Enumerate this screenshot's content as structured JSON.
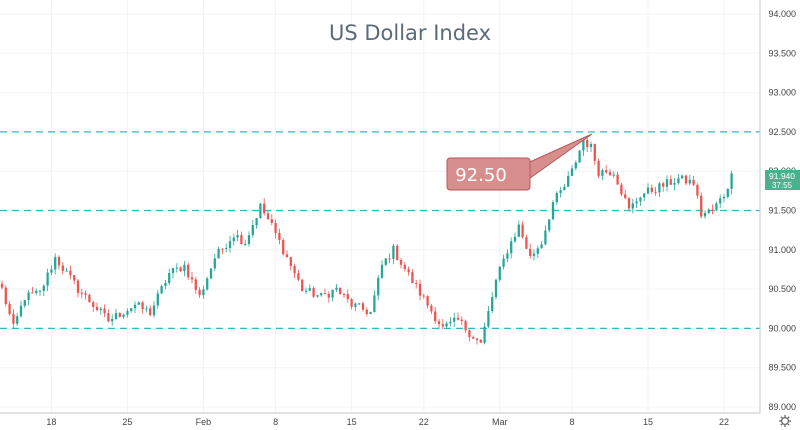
{
  "chart_data": {
    "type": "candlestick",
    "title": "US Dollar Index",
    "y_range": [
      89.0,
      94.0
    ],
    "y_ticks": [
      "94.000",
      "93.500",
      "93.000",
      "92.500",
      "92.000",
      "91.500",
      "91.000",
      "90.500",
      "90.000",
      "89.500",
      "89.000"
    ],
    "x_ticks": [
      {
        "label": "18",
        "bar": 13
      },
      {
        "label": "25",
        "bar": 33
      },
      {
        "label": "Feb",
        "bar": 53
      },
      {
        "label": "8",
        "bar": 72
      },
      {
        "label": "15",
        "bar": 92
      },
      {
        "label": "22",
        "bar": 111
      },
      {
        "label": "Mar",
        "bar": 131
      },
      {
        "label": "8",
        "bar": 150
      },
      {
        "label": "15",
        "bar": 170
      },
      {
        "label": "22",
        "bar": 190
      }
    ],
    "bar_count": 200,
    "reference_levels": [
      92.5,
      91.5,
      90.0
    ],
    "annotation": {
      "label": "92.50",
      "value": 92.5
    },
    "last_price": {
      "value": "91.940",
      "countdown": "37:55"
    },
    "keypoints": [
      [
        0,
        90.5
      ],
      [
        3,
        90.0
      ],
      [
        6,
        90.4
      ],
      [
        10,
        90.45
      ],
      [
        14,
        90.9
      ],
      [
        20,
        90.5
      ],
      [
        28,
        90.1
      ],
      [
        35,
        90.3
      ],
      [
        39,
        90.2
      ],
      [
        44,
        90.7
      ],
      [
        48,
        90.8
      ],
      [
        52,
        90.4
      ],
      [
        56,
        90.9
      ],
      [
        61,
        91.2
      ],
      [
        64,
        91.1
      ],
      [
        68,
        91.55
      ],
      [
        71,
        91.3
      ],
      [
        75,
        90.9
      ],
      [
        79,
        90.5
      ],
      [
        84,
        90.4
      ],
      [
        88,
        90.5
      ],
      [
        92,
        90.3
      ],
      [
        97,
        90.2
      ],
      [
        100,
        90.8
      ],
      [
        103,
        91.0
      ],
      [
        108,
        90.6
      ],
      [
        112,
        90.3
      ],
      [
        116,
        90.0
      ],
      [
        120,
        90.1
      ],
      [
        124,
        89.9
      ],
      [
        126,
        89.8
      ],
      [
        130,
        90.6
      ],
      [
        133,
        91.0
      ],
      [
        136,
        91.3
      ],
      [
        139,
        90.9
      ],
      [
        142,
        91.1
      ],
      [
        145,
        91.6
      ],
      [
        148,
        91.8
      ],
      [
        150,
        92.0
      ],
      [
        153,
        92.4
      ],
      [
        155,
        92.3
      ],
      [
        157,
        92.0
      ],
      [
        161,
        92.0
      ],
      [
        165,
        91.5
      ],
      [
        168,
        91.7
      ],
      [
        173,
        91.8
      ],
      [
        178,
        91.9
      ],
      [
        182,
        91.85
      ],
      [
        184,
        91.45
      ],
      [
        187,
        91.5
      ],
      [
        190,
        91.7
      ],
      [
        192,
        91.94
      ]
    ]
  }
}
